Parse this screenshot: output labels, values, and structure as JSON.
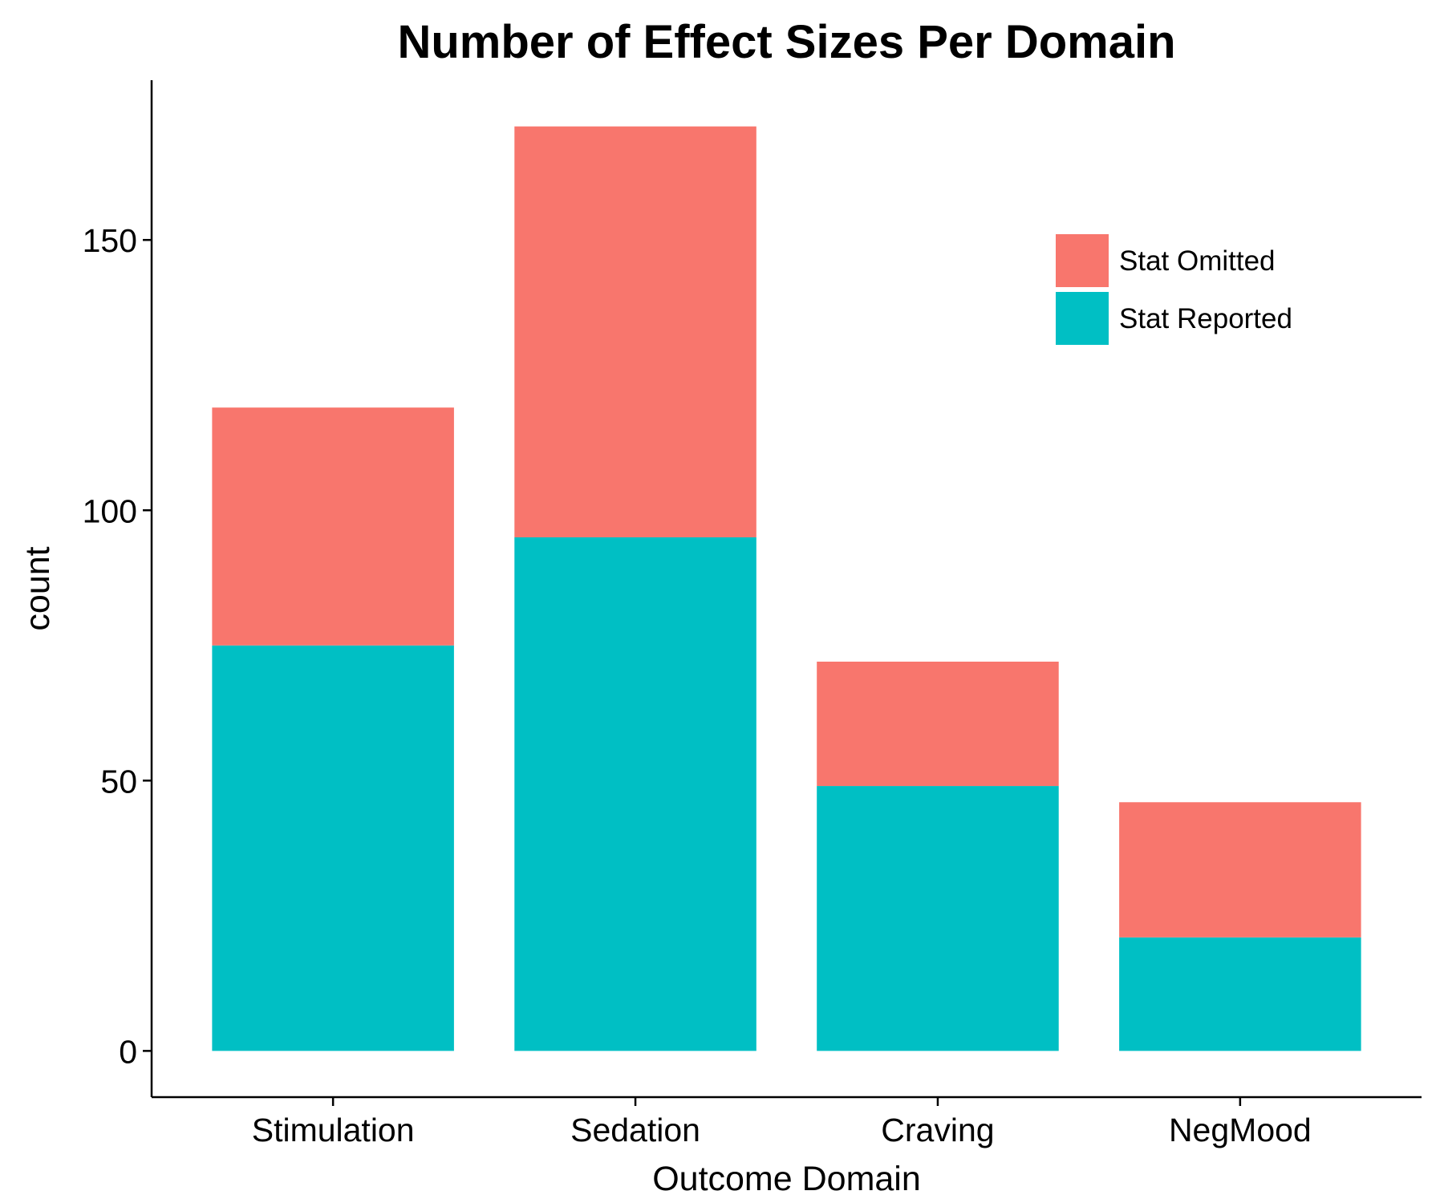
{
  "chart_data": {
    "type": "bar",
    "stacked": true,
    "title": "Number of Effect Sizes Per Domain",
    "xlabel": "Outcome Domain",
    "ylabel": "count",
    "categories": [
      "Stimulation",
      "Sedation",
      "Craving",
      "NegMood"
    ],
    "series": [
      {
        "name": "Stat Reported",
        "color": "#00BFC4",
        "values": [
          75,
          95,
          49,
          21
        ]
      },
      {
        "name": "Stat Omitted",
        "color": "#F8766D",
        "values": [
          44,
          76,
          23,
          25
        ]
      }
    ],
    "yticks": [
      0,
      50,
      100,
      150
    ],
    "ylim": [
      -8.55,
      179.55
    ],
    "grid": false,
    "legend_position": "top-right",
    "legend_order": [
      "Stat Omitted",
      "Stat Reported"
    ]
  }
}
